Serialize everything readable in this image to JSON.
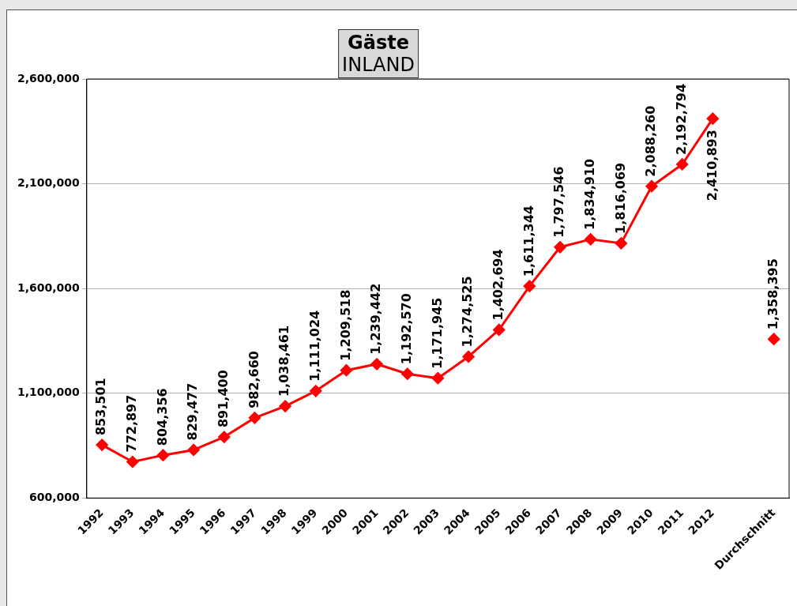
{
  "chart_data": {
    "type": "line",
    "title": "Gäste",
    "subtitle": "INLAND",
    "categories": [
      "1992",
      "1993",
      "1994",
      "1995",
      "1996",
      "1997",
      "1998",
      "1999",
      "2000",
      "2001",
      "2002",
      "2003",
      "2004",
      "2005",
      "2006",
      "2007",
      "2008",
      "2009",
      "2010",
      "2011",
      "2012",
      null,
      "Durchschnitt"
    ],
    "series": [
      {
        "type": "line",
        "color": "#ff0000",
        "values": [
          853501,
          772897,
          804356,
          829477,
          891400,
          982660,
          1038461,
          1111024,
          1209518,
          1239442,
          1192570,
          1171945,
          1274525,
          1402694,
          1611344,
          1797546,
          1834910,
          1816069,
          2088260,
          2192794,
          2410893,
          null,
          null
        ],
        "value_labels": [
          "853,501",
          "772,897",
          "804,356",
          "829,477",
          "891,400",
          "982,660",
          "1,038,461",
          "1,111,024",
          "1,209,518",
          "1,239,442",
          "1,192,570",
          "1,171,945",
          "1,274,525",
          "1,402,694",
          "1,611,344",
          "1,797,546",
          "1,834,910",
          "1,816,069",
          "2,088,260",
          "2,192,794",
          "2,410,893",
          null,
          null
        ]
      },
      {
        "type": "scatter",
        "color": "#ff0000",
        "x": [
          "Durchschnitt"
        ],
        "values": [
          1358395
        ],
        "value_labels": [
          "1,358,395"
        ]
      }
    ],
    "ylim": [
      600000,
      2600000
    ],
    "yticks": [
      {
        "value": 600000,
        "label": "600,000"
      },
      {
        "value": 1100000,
        "label": "1,100,000"
      },
      {
        "value": 1600000,
        "label": "1,600,000"
      },
      {
        "value": 2100000,
        "label": "2,100,000"
      },
      {
        "value": 2600000,
        "label": "2,600,000"
      }
    ],
    "grid": "y",
    "legend": false,
    "marker": "diamond",
    "line_style": "solid"
  }
}
